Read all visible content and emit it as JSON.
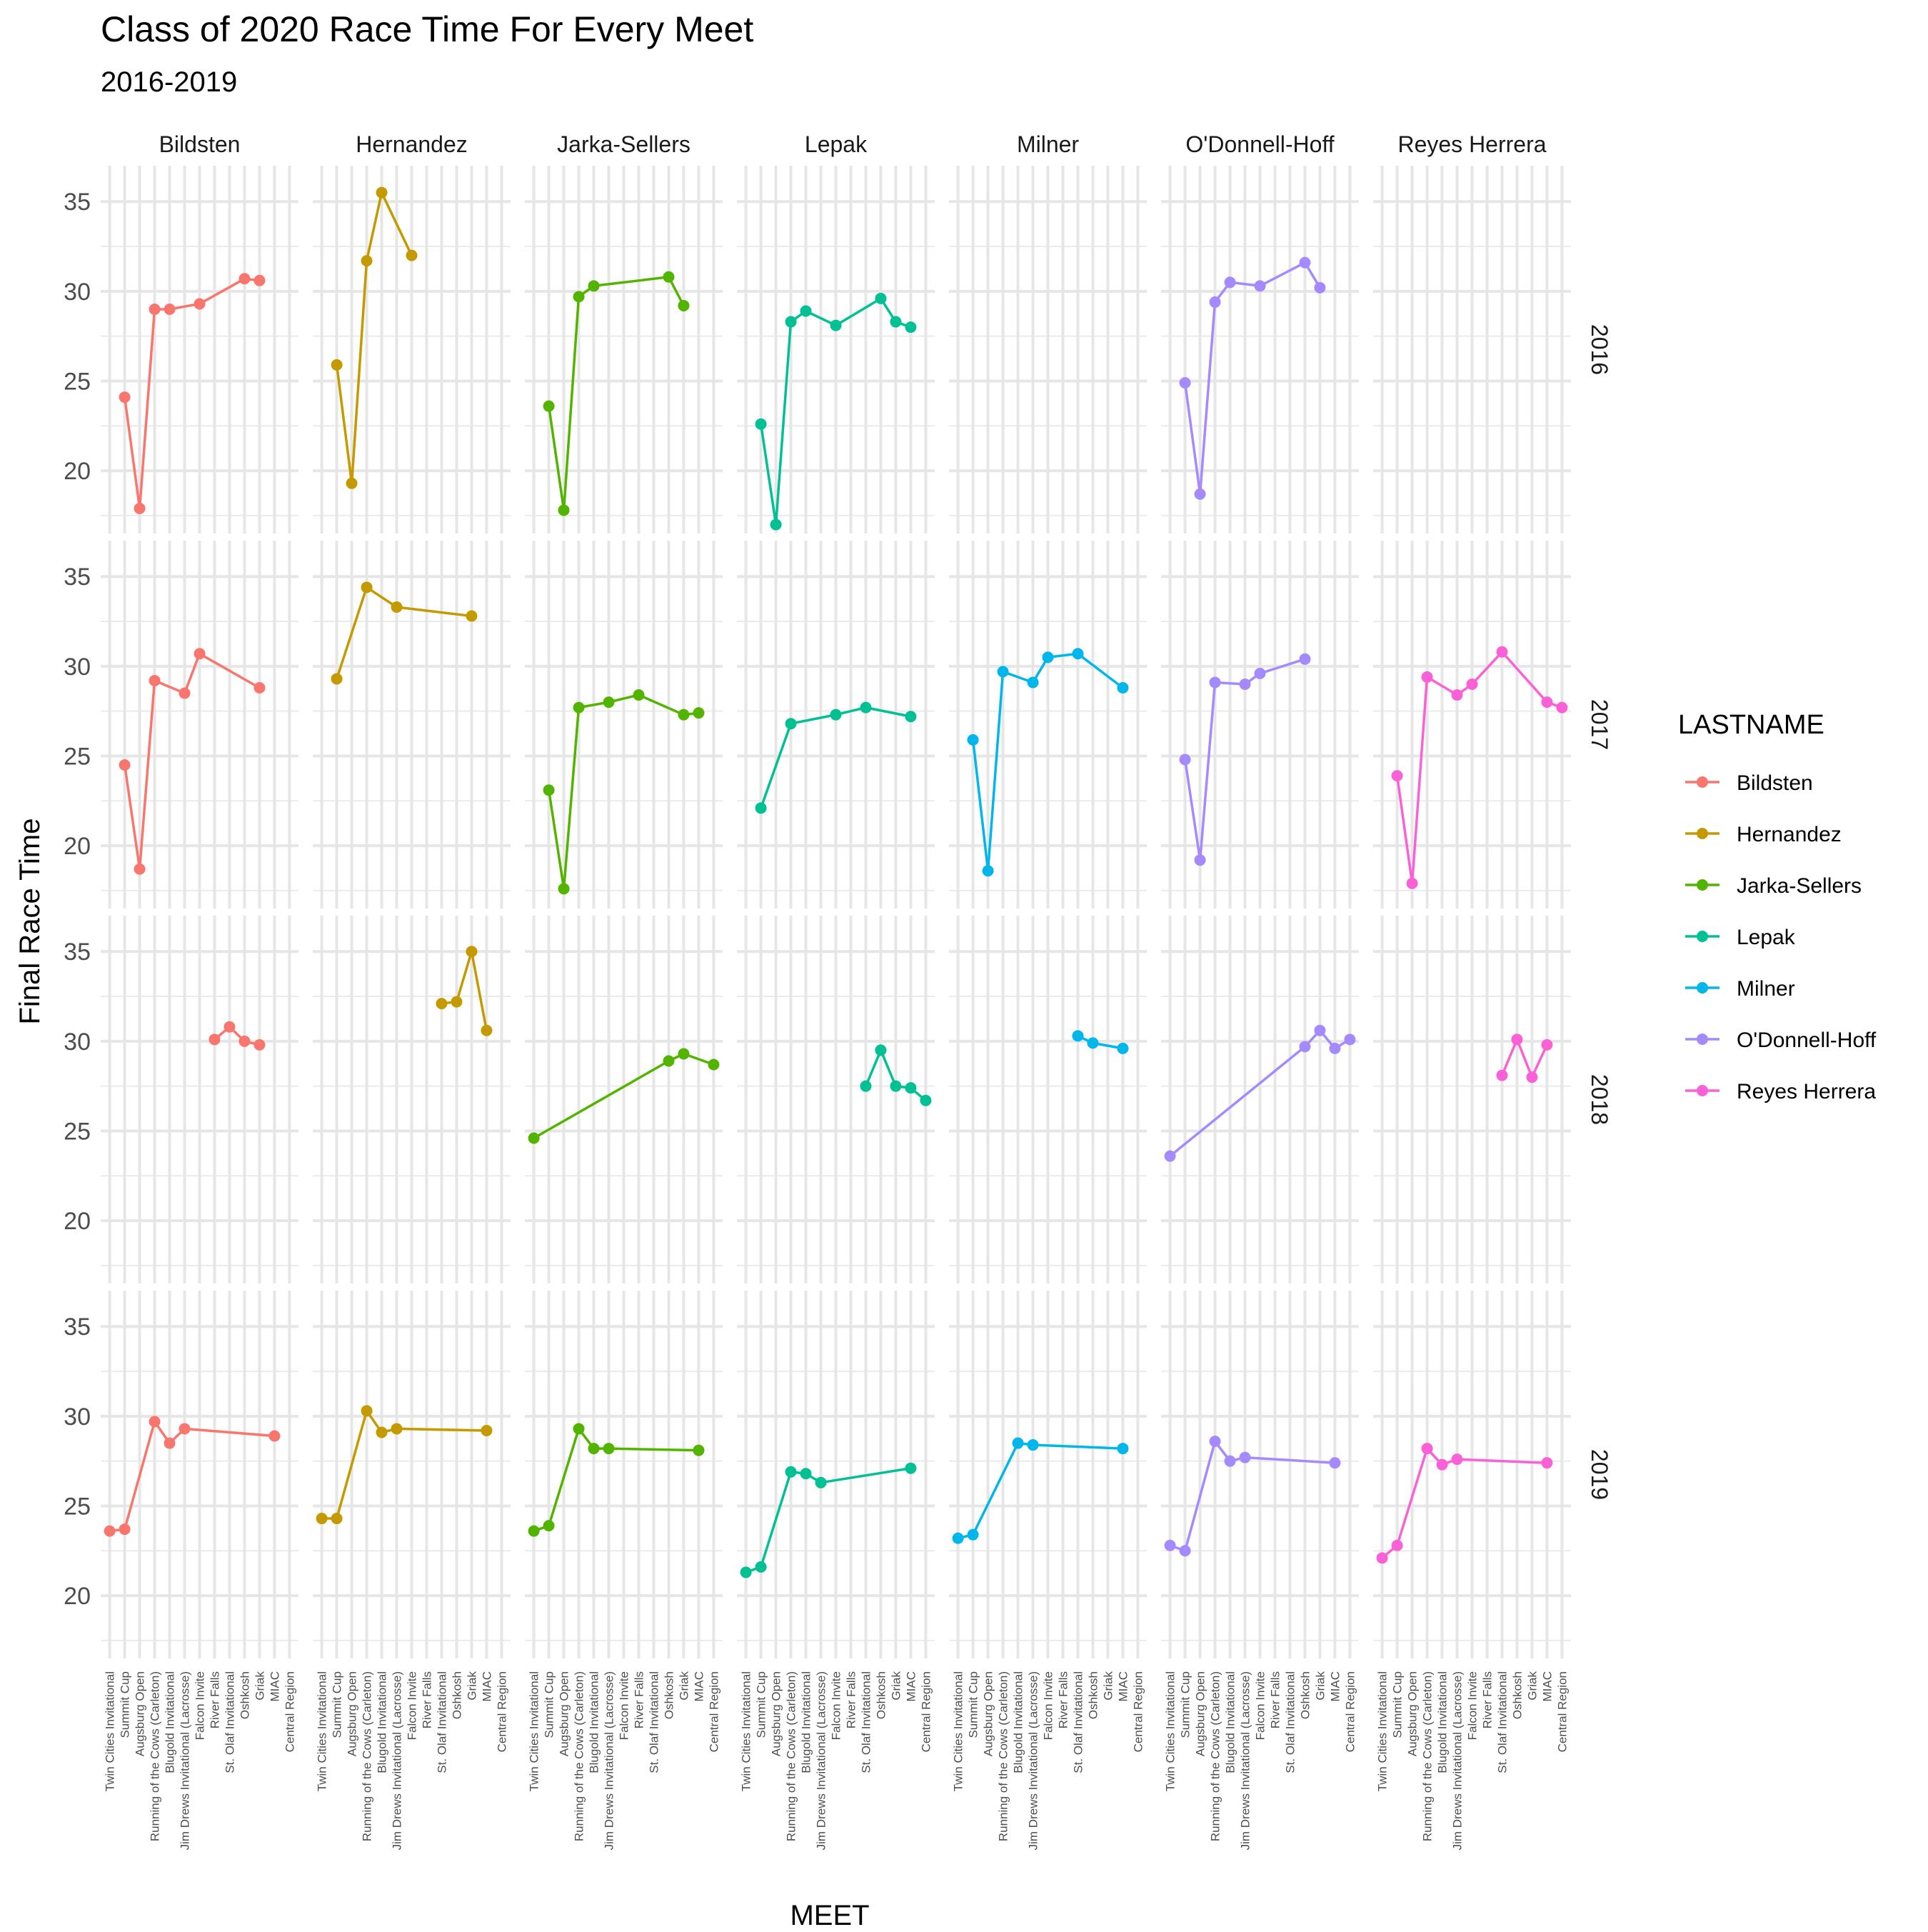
{
  "chart_data": {
    "type": "line",
    "title": "Class of 2020 Race Time For Every Meet",
    "subtitle": "2016-2019",
    "xlabel": "MEET",
    "ylabel": "Final Race Time",
    "ylim": [
      16.5,
      37
    ],
    "yticks": [
      20,
      25,
      30,
      35
    ],
    "legend": {
      "title": "LASTNAME",
      "position": "right"
    },
    "grid": true,
    "meets": [
      "Twin Cities Invitational",
      "Summit Cup",
      "Augsburg Open",
      "Running of the Cows (Carleton)",
      "Blugold Invitational",
      "Jim Drews Invitational (Lacrosse)",
      "Falcon Invite",
      "River Falls",
      "St. Olaf Invitational",
      "Oshkosh",
      "Griak",
      "MIAC",
      "Central Region"
    ],
    "facet_cols": [
      "Bildsten",
      "Hernandez",
      "Jarka-Sellers",
      "Lepak",
      "Milner",
      "O'Donnell-Hoff",
      "Reyes Herrera"
    ],
    "facet_rows": [
      "2016",
      "2017",
      "2018",
      "2019"
    ],
    "colors": {
      "Bildsten": "#F8766D",
      "Hernandez": "#C49A00",
      "Jarka-Sellers": "#53B400",
      "Lepak": "#00C094",
      "Milner": "#00B6EB",
      "O'Donnell-Hoff": "#A58AFF",
      "Reyes Herrera": "#FB61D7"
    },
    "series": [
      {
        "name": "Bildsten",
        "year": "2016",
        "points": [
          [
            1,
            24.1
          ],
          [
            2,
            17.9
          ],
          [
            3,
            29.0
          ],
          [
            4,
            29.0
          ],
          [
            6,
            29.3
          ],
          [
            9,
            30.7
          ],
          [
            10,
            30.6
          ]
        ]
      },
      {
        "name": "Hernandez",
        "year": "2016",
        "points": [
          [
            1,
            25.9
          ],
          [
            2,
            19.3
          ],
          [
            3,
            31.7
          ],
          [
            4,
            35.5
          ],
          [
            6,
            32.0
          ]
        ]
      },
      {
        "name": "Jarka-Sellers",
        "year": "2016",
        "points": [
          [
            1,
            23.6
          ],
          [
            2,
            17.8
          ],
          [
            3,
            29.7
          ],
          [
            4,
            30.3
          ],
          [
            9,
            30.8
          ],
          [
            10,
            29.2
          ]
        ]
      },
      {
        "name": "Lepak",
        "year": "2016",
        "points": [
          [
            1,
            22.6
          ],
          [
            2,
            17.0
          ],
          [
            3,
            28.3
          ],
          [
            4,
            28.9
          ],
          [
            6,
            28.1
          ],
          [
            9,
            29.6
          ],
          [
            10,
            28.3
          ],
          [
            11,
            28.0
          ]
        ]
      },
      {
        "name": "O'Donnell-Hoff",
        "year": "2016",
        "points": [
          [
            1,
            24.9
          ],
          [
            2,
            18.7
          ],
          [
            3,
            29.4
          ],
          [
            4,
            30.5
          ],
          [
            6,
            30.3
          ],
          [
            9,
            31.6
          ],
          [
            10,
            30.2
          ]
        ]
      },
      {
        "name": "Bildsten",
        "year": "2017",
        "points": [
          [
            1,
            24.5
          ],
          [
            2,
            18.7
          ],
          [
            3,
            29.2
          ],
          [
            5,
            28.5
          ],
          [
            6,
            30.7
          ],
          [
            10,
            28.8
          ]
        ]
      },
      {
        "name": "Hernandez",
        "year": "2017",
        "points": [
          [
            1,
            29.3
          ],
          [
            3,
            34.4
          ],
          [
            5,
            33.3
          ],
          [
            10,
            32.8
          ]
        ]
      },
      {
        "name": "Jarka-Sellers",
        "year": "2017",
        "points": [
          [
            1,
            23.1
          ],
          [
            2,
            17.6
          ],
          [
            3,
            27.7
          ],
          [
            5,
            28.0
          ],
          [
            7,
            28.4
          ],
          [
            10,
            27.3
          ],
          [
            11,
            27.4
          ]
        ]
      },
      {
        "name": "Lepak",
        "year": "2017",
        "points": [
          [
            1,
            22.1
          ],
          [
            3,
            26.8
          ],
          [
            6,
            27.3
          ],
          [
            8,
            27.7
          ],
          [
            11,
            27.2
          ]
        ]
      },
      {
        "name": "Milner",
        "year": "2017",
        "points": [
          [
            1,
            25.9
          ],
          [
            2,
            18.6
          ],
          [
            3,
            29.7
          ],
          [
            5,
            29.1
          ],
          [
            6,
            30.5
          ],
          [
            8,
            30.7
          ],
          [
            11,
            28.8
          ]
        ]
      },
      {
        "name": "O'Donnell-Hoff",
        "year": "2017",
        "points": [
          [
            1,
            24.8
          ],
          [
            2,
            19.2
          ],
          [
            3,
            29.1
          ],
          [
            5,
            29.0
          ],
          [
            6,
            29.6
          ],
          [
            9,
            30.4
          ]
        ]
      },
      {
        "name": "Reyes Herrera",
        "year": "2017",
        "points": [
          [
            1,
            23.9
          ],
          [
            2,
            17.9
          ],
          [
            3,
            29.4
          ],
          [
            5,
            28.4
          ],
          [
            6,
            29.0
          ],
          [
            8,
            30.8
          ],
          [
            11,
            28.0
          ],
          [
            12,
            27.7
          ]
        ]
      },
      {
        "name": "Bildsten",
        "year": "2018",
        "points": [
          [
            7,
            30.1
          ],
          [
            8,
            30.8
          ],
          [
            9,
            30.0
          ],
          [
            10,
            29.8
          ]
        ]
      },
      {
        "name": "Hernandez",
        "year": "2018",
        "points": [
          [
            8,
            32.1
          ],
          [
            9,
            32.2
          ],
          [
            10,
            35.0
          ],
          [
            11,
            30.6
          ]
        ]
      },
      {
        "name": "Jarka-Sellers",
        "year": "2018",
        "points": [
          [
            0,
            24.6
          ],
          [
            9,
            28.9
          ],
          [
            10,
            29.3
          ],
          [
            12,
            28.7
          ]
        ]
      },
      {
        "name": "Lepak",
        "year": "2018",
        "points": [
          [
            8,
            27.5
          ],
          [
            9,
            29.5
          ],
          [
            10,
            27.5
          ],
          [
            11,
            27.4
          ],
          [
            12,
            26.7
          ]
        ]
      },
      {
        "name": "Milner",
        "year": "2018",
        "points": [
          [
            8,
            30.3
          ],
          [
            9,
            29.9
          ],
          [
            11,
            29.6
          ]
        ]
      },
      {
        "name": "O'Donnell-Hoff",
        "year": "2018",
        "points": [
          [
            0,
            23.6
          ],
          [
            9,
            29.7
          ],
          [
            10,
            30.6
          ],
          [
            11,
            29.6
          ],
          [
            12,
            30.1
          ]
        ]
      },
      {
        "name": "Reyes Herrera",
        "year": "2018",
        "points": [
          [
            8,
            28.1
          ],
          [
            9,
            30.1
          ],
          [
            10,
            28.0
          ],
          [
            11,
            29.8
          ]
        ]
      },
      {
        "name": "Bildsten",
        "year": "2019",
        "points": [
          [
            0,
            23.6
          ],
          [
            1,
            23.7
          ],
          [
            3,
            29.7
          ],
          [
            4,
            28.5
          ],
          [
            5,
            29.3
          ],
          [
            11,
            28.9
          ]
        ]
      },
      {
        "name": "Hernandez",
        "year": "2019",
        "points": [
          [
            0,
            24.3
          ],
          [
            1,
            24.3
          ],
          [
            3,
            30.3
          ],
          [
            4,
            29.1
          ],
          [
            5,
            29.3
          ],
          [
            11,
            29.2
          ]
        ]
      },
      {
        "name": "Jarka-Sellers",
        "year": "2019",
        "points": [
          [
            0,
            23.6
          ],
          [
            1,
            23.9
          ],
          [
            3,
            29.3
          ],
          [
            4,
            28.2
          ],
          [
            5,
            28.2
          ],
          [
            11,
            28.1
          ]
        ]
      },
      {
        "name": "Lepak",
        "year": "2019",
        "points": [
          [
            0,
            21.3
          ],
          [
            1,
            21.6
          ],
          [
            3,
            26.9
          ],
          [
            4,
            26.8
          ],
          [
            5,
            26.3
          ],
          [
            11,
            27.1
          ]
        ]
      },
      {
        "name": "Milner",
        "year": "2019",
        "points": [
          [
            0,
            23.2
          ],
          [
            1,
            23.4
          ],
          [
            4,
            28.5
          ],
          [
            5,
            28.4
          ],
          [
            11,
            28.2
          ]
        ]
      },
      {
        "name": "O'Donnell-Hoff",
        "year": "2019",
        "points": [
          [
            0,
            22.8
          ],
          [
            1,
            22.5
          ],
          [
            3,
            28.6
          ],
          [
            4,
            27.5
          ],
          [
            5,
            27.7
          ],
          [
            11,
            27.4
          ]
        ]
      },
      {
        "name": "Reyes Herrera",
        "year": "2019",
        "points": [
          [
            0,
            22.1
          ],
          [
            1,
            22.8
          ],
          [
            3,
            28.2
          ],
          [
            4,
            27.3
          ],
          [
            5,
            27.6
          ],
          [
            11,
            27.4
          ]
        ]
      }
    ]
  }
}
